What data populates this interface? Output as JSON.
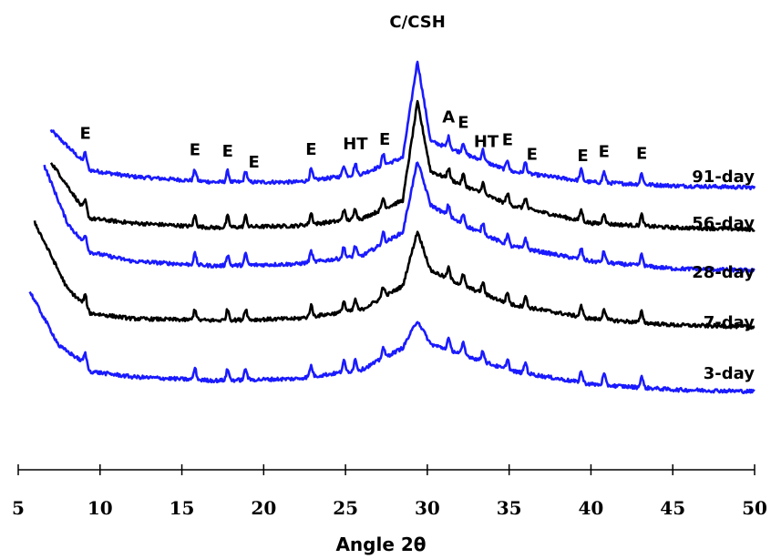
{
  "chart_data": {
    "type": "line",
    "xlabel": "Angle 2θ",
    "ylabel": "",
    "xlim": [
      5,
      50
    ],
    "x_ticks": [
      "5",
      "10",
      "15",
      "20",
      "25",
      "30",
      "35",
      "40",
      "45",
      "50"
    ],
    "y_axis_shown": false,
    "grid": false,
    "peaks": [
      9.1,
      15.8,
      17.8,
      18.9,
      22.9,
      24.9,
      25.6,
      27.3,
      29.4,
      31.3,
      32.2,
      33.4,
      34.9,
      36.0,
      39.4,
      40.8,
      43.1
    ],
    "peak_labels": [
      {
        "text": "E",
        "x": 9.1
      },
      {
        "text": "E",
        "x": 15.8
      },
      {
        "text": "E",
        "x": 17.8
      },
      {
        "text": "E",
        "x": 19.4
      },
      {
        "text": "E",
        "x": 22.9
      },
      {
        "text": "HT",
        "x": 25.6
      },
      {
        "text": "E",
        "x": 27.4
      },
      {
        "text": "C/CSH",
        "x": 29.4
      },
      {
        "text": "A",
        "x": 31.3
      },
      {
        "text": "E",
        "x": 32.2
      },
      {
        "text": "HT",
        "x": 33.6
      },
      {
        "text": "E",
        "x": 34.9
      },
      {
        "text": "E",
        "x": 36.4
      },
      {
        "text": "E",
        "x": 39.5
      },
      {
        "text": "E",
        "x": 40.8
      },
      {
        "text": "E",
        "x": 43.1
      }
    ],
    "series": [
      {
        "name": "91-day",
        "color": "#1a1aff",
        "x_start": 7.0,
        "profile": [
          {
            "x": 7.0,
            "y": 72
          },
          {
            "x": 9.0,
            "y": 37
          },
          {
            "x": 9.4,
            "y": 28
          },
          {
            "x": 12,
            "y": 21
          },
          {
            "x": 17,
            "y": 15
          },
          {
            "x": 22,
            "y": 15
          },
          {
            "x": 26,
            "y": 24
          },
          {
            "x": 28.5,
            "y": 42
          },
          {
            "x": 29.4,
            "y": 148
          },
          {
            "x": 30.2,
            "y": 60
          },
          {
            "x": 32,
            "y": 48
          },
          {
            "x": 35,
            "y": 27
          },
          {
            "x": 40,
            "y": 15
          },
          {
            "x": 45,
            "y": 11
          },
          {
            "x": 50,
            "y": 9
          }
        ]
      },
      {
        "name": "56-day",
        "color": "#000000",
        "x_start": 7.0,
        "profile": [
          {
            "x": 7.0,
            "y": 92
          },
          {
            "x": 9.0,
            "y": 40
          },
          {
            "x": 9.4,
            "y": 30
          },
          {
            "x": 12,
            "y": 25
          },
          {
            "x": 17,
            "y": 20
          },
          {
            "x": 22,
            "y": 22
          },
          {
            "x": 26,
            "y": 30
          },
          {
            "x": 28.5,
            "y": 50
          },
          {
            "x": 29.4,
            "y": 158
          },
          {
            "x": 30.2,
            "y": 82
          },
          {
            "x": 32,
            "y": 68
          },
          {
            "x": 35,
            "y": 45
          },
          {
            "x": 40,
            "y": 25
          },
          {
            "x": 45,
            "y": 20
          },
          {
            "x": 50,
            "y": 18
          }
        ]
      },
      {
        "name": "28-day",
        "color": "#1a1aff",
        "x_start": 6.6,
        "profile": [
          {
            "x": 6.6,
            "y": 143
          },
          {
            "x": 8.0,
            "y": 80
          },
          {
            "x": 9.0,
            "y": 58
          },
          {
            "x": 9.4,
            "y": 48
          },
          {
            "x": 12,
            "y": 38
          },
          {
            "x": 17,
            "y": 33
          },
          {
            "x": 22,
            "y": 35
          },
          {
            "x": 26,
            "y": 44
          },
          {
            "x": 28.5,
            "y": 70
          },
          {
            "x": 29.4,
            "y": 148
          },
          {
            "x": 30.2,
            "y": 100
          },
          {
            "x": 32,
            "y": 80
          },
          {
            "x": 35,
            "y": 55
          },
          {
            "x": 40,
            "y": 38
          },
          {
            "x": 45,
            "y": 30
          },
          {
            "x": 50,
            "y": 28
          }
        ]
      },
      {
        "name": "7-day",
        "color": "#000000",
        "x_start": 6.0,
        "profile": [
          {
            "x": 6.0,
            "y": 138
          },
          {
            "x": 8.0,
            "y": 65
          },
          {
            "x": 9.0,
            "y": 48
          },
          {
            "x": 9.4,
            "y": 38
          },
          {
            "x": 12,
            "y": 32
          },
          {
            "x": 17,
            "y": 30
          },
          {
            "x": 22,
            "y": 32
          },
          {
            "x": 26,
            "y": 42
          },
          {
            "x": 28.5,
            "y": 68
          },
          {
            "x": 29.4,
            "y": 128
          },
          {
            "x": 30.2,
            "y": 85
          },
          {
            "x": 32,
            "y": 70
          },
          {
            "x": 35,
            "y": 48
          },
          {
            "x": 40,
            "y": 32
          },
          {
            "x": 45,
            "y": 25
          },
          {
            "x": 50,
            "y": 23
          }
        ]
      },
      {
        "name": "3-day",
        "color": "#1a1aff",
        "x_start": 5.7,
        "profile": [
          {
            "x": 5.7,
            "y": 120
          },
          {
            "x": 7.5,
            "y": 60
          },
          {
            "x": 9.0,
            "y": 42
          },
          {
            "x": 9.4,
            "y": 32
          },
          {
            "x": 12,
            "y": 26
          },
          {
            "x": 17,
            "y": 22
          },
          {
            "x": 22,
            "y": 24
          },
          {
            "x": 26,
            "y": 34
          },
          {
            "x": 28.5,
            "y": 58
          },
          {
            "x": 29.4,
            "y": 88
          },
          {
            "x": 30.2,
            "y": 62
          },
          {
            "x": 32,
            "y": 52
          },
          {
            "x": 35,
            "y": 33
          },
          {
            "x": 40,
            "y": 18
          },
          {
            "x": 45,
            "y": 12
          },
          {
            "x": 50,
            "y": 10
          }
        ]
      }
    ]
  }
}
